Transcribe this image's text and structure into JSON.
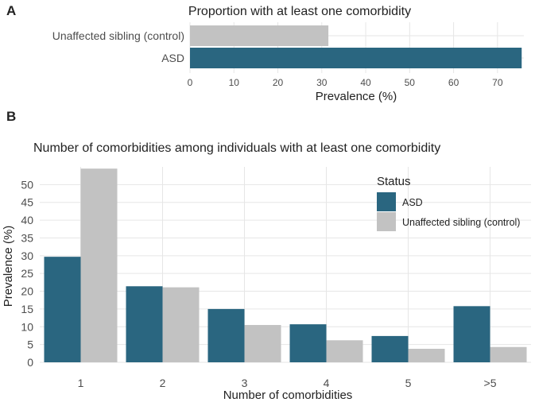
{
  "colors": {
    "asd": "#2a6680",
    "control": "#c2c2c2",
    "grid": "#e6e6e6",
    "text": "#4d4d4d",
    "title": "#222222"
  },
  "chart_data": [
    {
      "panel": "A",
      "type": "bar",
      "orientation": "horizontal",
      "title": "Proportion with at least one comorbidity",
      "categories": [
        "Unaffected sibling (control)",
        "ASD"
      ],
      "values": [
        31.5,
        75.5
      ],
      "xlabel": "Prevalence (%)",
      "xlim": [
        0,
        76
      ],
      "xticks": [
        0,
        10,
        20,
        30,
        40,
        50,
        60,
        70
      ]
    },
    {
      "panel": "B",
      "type": "bar",
      "title": "Number of comorbidities among individuals with at least one comorbidity",
      "categories": [
        "1",
        "2",
        "3",
        "4",
        "5",
        ">5"
      ],
      "series": [
        {
          "name": "ASD",
          "values": [
            29.7,
            21.4,
            15.0,
            10.7,
            7.4,
            15.8
          ]
        },
        {
          "name": "Unaffected sibling (control)",
          "values": [
            54.5,
            21.1,
            10.5,
            6.2,
            3.8,
            4.3
          ]
        }
      ],
      "xlabel": "Number of comorbidities",
      "ylabel": "Prevalence (%)",
      "ylim": [
        0,
        55
      ],
      "yticks": [
        0,
        5,
        10,
        15,
        20,
        25,
        30,
        35,
        40,
        45,
        50
      ],
      "legend": {
        "title": "Status",
        "position": "top-right"
      }
    }
  ]
}
